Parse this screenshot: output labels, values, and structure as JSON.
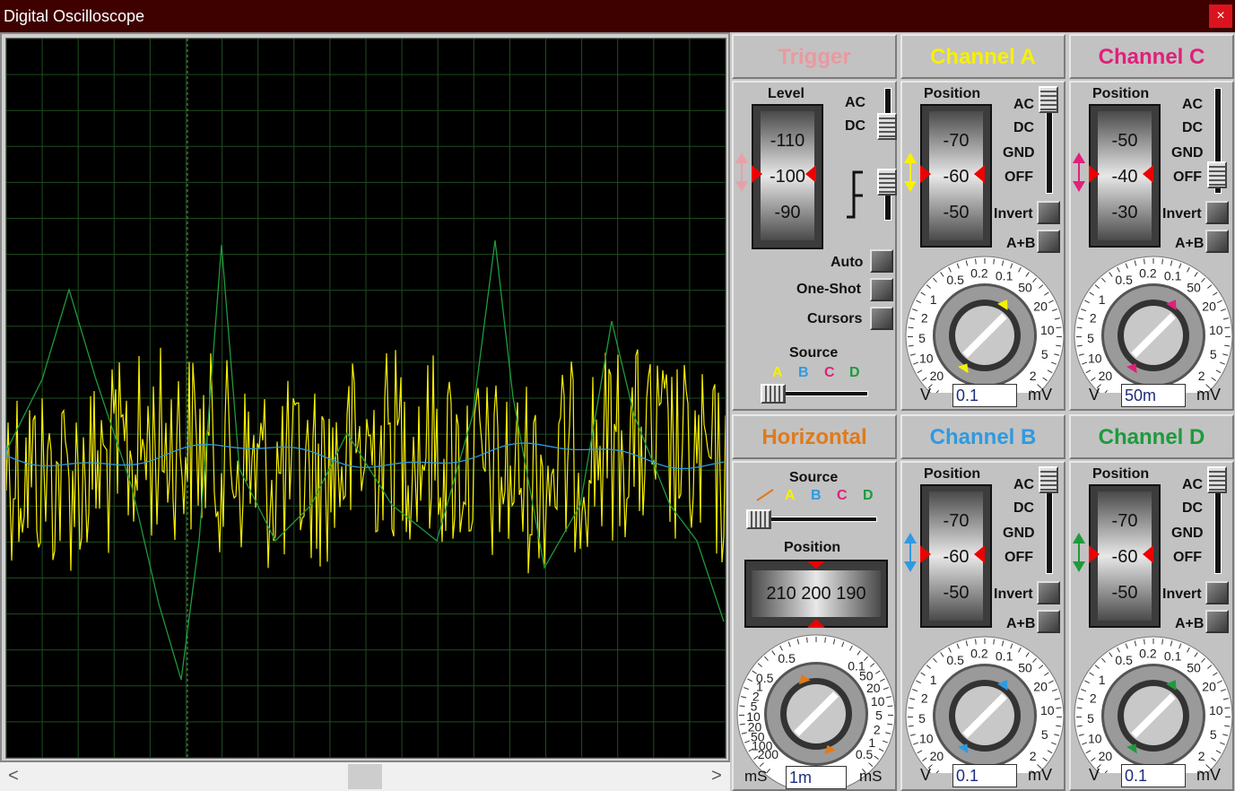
{
  "window": {
    "title": "Digital Oscilloscope",
    "close": "×"
  },
  "scroll": {
    "left": "<",
    "right": ">"
  },
  "trigger": {
    "header": "Trigger",
    "level_label": "Level",
    "drum": [
      "-110",
      "-100",
      "-90"
    ],
    "ac": "AC",
    "dc": "DC",
    "auto": "Auto",
    "one_shot": "One-Shot",
    "cursors": "Cursors",
    "source_label": "Source",
    "sources": [
      "A",
      "B",
      "C",
      "D"
    ]
  },
  "horizontal": {
    "header": "Horizontal",
    "source_label": "Source",
    "sources": [
      "A",
      "B",
      "C",
      "D"
    ],
    "position_label": "Position",
    "drum": "210 200 190",
    "dial_left": [
      "200",
      "100",
      "50",
      "20",
      "10",
      "5",
      "2",
      "1",
      "0.5"
    ],
    "dial_right": [
      "0.1",
      "50",
      "20",
      "10",
      "5",
      "2",
      "1",
      "0.5"
    ],
    "dial_top": "0.5",
    "unit_left": "mS",
    "unit_right": "mS",
    "value": "1m"
  },
  "channels": [
    {
      "id": "a",
      "header": "Channel A",
      "color": "#f7f000",
      "position_label": "Position",
      "drum": [
        "-70",
        "-60",
        "-50"
      ],
      "ac": "AC",
      "dc": "DC",
      "gnd": "GND",
      "off": "OFF",
      "invert": "Invert",
      "apb": "A+B",
      "unit_left": "V",
      "unit_right": "mV",
      "value": "0.1",
      "dial_left": [
        "20",
        "10",
        "5",
        "2",
        "1"
      ],
      "dial_top": [
        "0.5",
        "0.2",
        "0.1"
      ],
      "dial_right": [
        "50",
        "20",
        "10",
        "5",
        "2"
      ]
    },
    {
      "id": "c",
      "header": "Channel C",
      "color": "#e0207a",
      "position_label": "Position",
      "drum": [
        "-50",
        "-40",
        "-30"
      ],
      "ac": "AC",
      "dc": "DC",
      "gnd": "GND",
      "off": "OFF",
      "invert": "Invert",
      "apb": "A+B",
      "unit_left": "V",
      "unit_right": "mV",
      "value": "50m",
      "dial_left": [
        "20",
        "10",
        "5",
        "2",
        "1"
      ],
      "dial_top": [
        "0.5",
        "0.2",
        "0.1"
      ],
      "dial_right": [
        "50",
        "20",
        "10",
        "5",
        "2"
      ]
    },
    {
      "id": "b",
      "header": "Channel B",
      "color": "#2e9ae0",
      "position_label": "Position",
      "drum": [
        "-70",
        "-60",
        "-50"
      ],
      "ac": "AC",
      "dc": "DC",
      "gnd": "GND",
      "off": "OFF",
      "invert": "Invert",
      "apb": "A+B",
      "unit_left": "V",
      "unit_right": "mV",
      "value": "0.1",
      "dial_left": [
        "20",
        "10",
        "5",
        "2",
        "1"
      ],
      "dial_top": [
        "0.5",
        "0.2",
        "0.1"
      ],
      "dial_right": [
        "50",
        "20",
        "10",
        "5",
        "2"
      ]
    },
    {
      "id": "d",
      "header": "Channel D",
      "color": "#1e9a3c",
      "position_label": "Position",
      "drum": [
        "-70",
        "-60",
        "-50"
      ],
      "ac": "AC",
      "dc": "DC",
      "gnd": "GND",
      "off": "OFF",
      "invert": "Invert",
      "apb": "A+B",
      "unit_left": "V",
      "unit_right": "mV",
      "value": "0.1",
      "dial_left": [
        "20",
        "10",
        "5",
        "2",
        "1"
      ],
      "dial_top": [
        "0.5",
        "0.2",
        "0.1"
      ],
      "dial_right": [
        "50",
        "20",
        "10",
        "5",
        "2"
      ]
    }
  ],
  "colors": {
    "trigger": "#e89aa0",
    "horizontal": "#e07a1a",
    "a": "#f7f000",
    "b": "#2e9ae0",
    "c": "#e0207a",
    "d": "#1e9a3c"
  }
}
